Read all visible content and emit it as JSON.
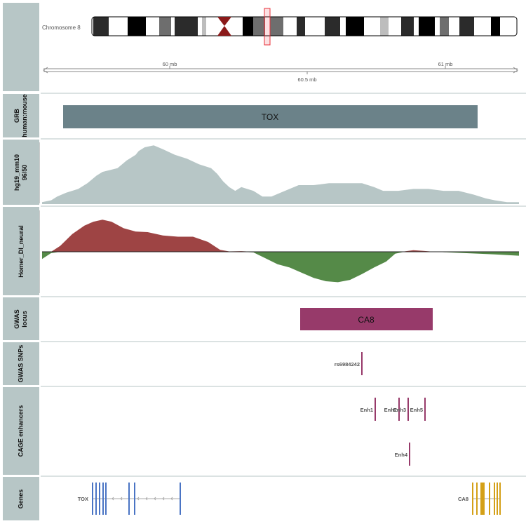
{
  "ideogram": {
    "chromosome_label": "Chromosome 8",
    "colors": {
      "outline": "#000000",
      "centromere": "#8b1a1a",
      "highlight": "#e8303a"
    }
  },
  "axis": {
    "tick_labels": [
      "60 mb",
      "60.5 mb",
      "61 mb"
    ]
  },
  "tracks": [
    {
      "id": "grb",
      "label": "GRB\nhuman:mouse"
    },
    {
      "id": "conservation",
      "label": "hg19_mm10\n96/50"
    },
    {
      "id": "homer",
      "label": "Homer_DI_neural"
    },
    {
      "id": "gwas_locus",
      "label": "GWAS\nlocus"
    },
    {
      "id": "gwas_snps",
      "label": "GWAS SNPs"
    },
    {
      "id": "cage",
      "label": "CAGE enhancers"
    },
    {
      "id": "genes",
      "label": "Genes"
    }
  ],
  "grb": {
    "name": "TOX",
    "color": "#6b8289"
  },
  "conservation": {
    "color": "#b7c6c6",
    "y_ticks": [
      "0.5",
      "1",
      "1.5",
      "2",
      "2.5",
      "3"
    ]
  },
  "homer": {
    "y_ticks": [
      "600",
      "400",
      "200",
      "0",
      "-200",
      "-400",
      "-600"
    ],
    "positive_color": "#9e4444",
    "negative_color": "#558a48"
  },
  "gwas_locus": {
    "name": "CA8",
    "color": "#973a6a"
  },
  "gwas_snps": {
    "items": [
      {
        "label": "rs6984242"
      }
    ],
    "color": "#973a6a"
  },
  "cage_enhancers": {
    "color": "#973a6a",
    "items": [
      {
        "label": "Enh1"
      },
      {
        "label": "Enh2"
      },
      {
        "label": "Enh3"
      },
      {
        "label": "Enh5"
      },
      {
        "label": "Enh4"
      }
    ]
  },
  "genes": {
    "items": [
      {
        "name": "TOX",
        "color": "#4a74c4"
      },
      {
        "name": "CA8",
        "color": "#d4a017"
      }
    ]
  },
  "chart_data": {
    "type": "area",
    "title": "",
    "series": [
      {
        "name": "hg19_mm10 96/50",
        "ylim": [
          0,
          3.3
        ],
        "profile": [
          [
            0,
            0.1
          ],
          [
            3,
            0.2
          ],
          [
            5,
            0.4
          ],
          [
            8,
            0.6
          ],
          [
            12,
            0.8
          ],
          [
            15,
            1.1
          ],
          [
            18,
            1.5
          ],
          [
            20,
            1.7
          ],
          [
            25,
            1.9
          ],
          [
            28,
            2.3
          ],
          [
            31,
            2.6
          ],
          [
            32,
            2.8
          ],
          [
            34,
            3.0
          ],
          [
            37,
            3.1
          ],
          [
            40,
            2.9
          ],
          [
            44,
            2.6
          ],
          [
            48,
            2.4
          ],
          [
            52,
            2.1
          ],
          [
            56,
            1.9
          ],
          [
            58,
            1.6
          ],
          [
            60,
            1.2
          ],
          [
            62,
            0.9
          ],
          [
            64,
            0.7
          ],
          [
            66,
            0.9
          ],
          [
            70,
            0.7
          ],
          [
            73,
            0.4
          ],
          [
            76,
            0.4
          ],
          [
            79,
            0.6
          ],
          [
            82,
            0.8
          ],
          [
            85,
            1.0
          ],
          [
            90,
            1.0
          ],
          [
            95,
            1.1
          ],
          [
            100,
            1.1
          ],
          [
            106,
            1.1
          ],
          [
            110,
            0.9
          ],
          [
            113,
            0.7
          ],
          [
            118,
            0.7
          ],
          [
            123,
            0.8
          ],
          [
            128,
            0.8
          ],
          [
            133,
            0.7
          ],
          [
            138,
            0.7
          ],
          [
            143,
            0.5
          ],
          [
            147,
            0.3
          ],
          [
            150,
            0.2
          ],
          [
            154,
            0.1
          ],
          [
            158,
            0.1
          ]
        ]
      },
      {
        "name": "Homer_DI_neural",
        "ylim": [
          -600,
          600
        ],
        "profile": [
          [
            0,
            -110
          ],
          [
            3,
            -20
          ],
          [
            6,
            90
          ],
          [
            10,
            270
          ],
          [
            14,
            400
          ],
          [
            17,
            460
          ],
          [
            20,
            490
          ],
          [
            23,
            460
          ],
          [
            27,
            360
          ],
          [
            31,
            310
          ],
          [
            35,
            300
          ],
          [
            40,
            250
          ],
          [
            45,
            230
          ],
          [
            50,
            230
          ],
          [
            55,
            150
          ],
          [
            59,
            30
          ],
          [
            62,
            5
          ],
          [
            66,
            10
          ],
          [
            70,
            -10
          ],
          [
            74,
            -100
          ],
          [
            78,
            -190
          ],
          [
            82,
            -240
          ],
          [
            86,
            -320
          ],
          [
            90,
            -400
          ],
          [
            94,
            -450
          ],
          [
            98,
            -465
          ],
          [
            102,
            -430
          ],
          [
            106,
            -340
          ],
          [
            110,
            -240
          ],
          [
            114,
            -150
          ],
          [
            117,
            -30
          ],
          [
            120,
            5
          ],
          [
            123,
            25
          ],
          [
            126,
            15
          ],
          [
            130,
            0
          ],
          [
            140,
            -20
          ],
          [
            150,
            -40
          ],
          [
            158,
            -60
          ]
        ]
      }
    ],
    "x_axis": {
      "tick_labels": [
        "60 mb",
        "60.5 mb",
        "61 mb"
      ]
    }
  }
}
